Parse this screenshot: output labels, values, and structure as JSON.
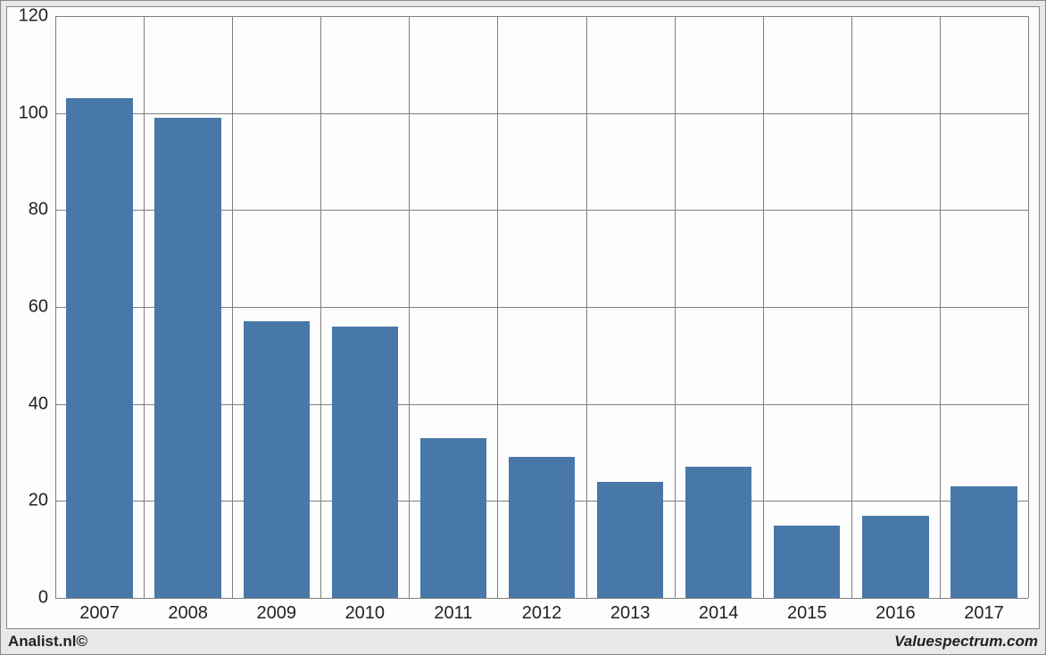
{
  "chart": {
    "type": "bar",
    "categories": [
      "2007",
      "2008",
      "2009",
      "2010",
      "2011",
      "2012",
      "2013",
      "2014",
      "2015",
      "2016",
      "2017"
    ],
    "values": [
      103,
      99,
      57,
      56,
      33,
      29,
      24,
      27,
      15,
      17,
      23
    ],
    "bar_color": "#4878a8",
    "background_color": "#fdfdfd",
    "outer_background": "#e8e8e8",
    "grid_color": "#7f7f7f",
    "ylim": [
      0,
      120
    ],
    "ytick_step": 20,
    "yticks": [
      0,
      20,
      40,
      60,
      80,
      100,
      120
    ],
    "label_fontsize": 20,
    "label_color": "#222222",
    "bar_width_ratio": 0.75
  },
  "footer": {
    "left": "Analist.nl©",
    "right": "Valuespectrum.com"
  }
}
